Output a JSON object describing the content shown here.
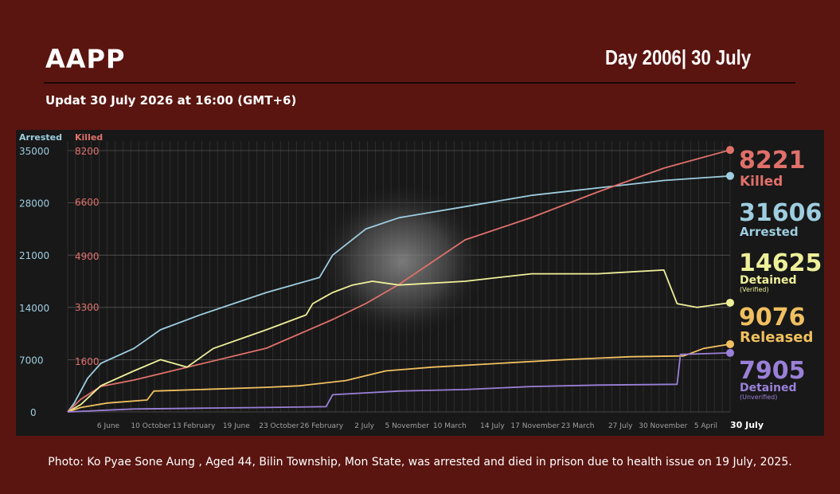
{
  "header": {
    "brand": "AAPP",
    "day_label": "Day 2006| 30 July",
    "update_text": "Updat 30 July 2026 at 16:00 (GMT+6)"
  },
  "caption": "Photo: Ko Pyae Sone Aung , Aged 44, Bilin Township, Mon State, was arrested and died in prison due to health issue on 19 July, 2025.",
  "colors": {
    "background": "#5a1510",
    "panel": "#181818",
    "arrested": "#9ecde0",
    "killed": "#e0706a",
    "verified": "#eef09a",
    "released": "#f0c060",
    "unverified": "#9a80d8"
  },
  "chart_data": {
    "type": "line",
    "grid": true,
    "axes": {
      "left_arrested": {
        "title": "Arrested",
        "ticks": [
          0,
          7000,
          14000,
          21000,
          28000,
          35000
        ],
        "tick_labels": [
          "0",
          "7000",
          "14000",
          "21000",
          "28000",
          "35000"
        ],
        "ylim": [
          0,
          35000
        ]
      },
      "left_killed": {
        "title": "Killed",
        "ticks": [
          1600,
          3300,
          4900,
          6600,
          8200
        ],
        "tick_labels": [
          "1600",
          "3300",
          "4900",
          "6600",
          "8200"
        ],
        "ylim": [
          0,
          8200
        ]
      }
    },
    "x_tick_labels": [
      "6 June",
      "10 October",
      "13 February",
      "19 June",
      "23 October",
      "26 February",
      "2 July",
      "5 November",
      "10 March",
      "14 July",
      "17 November",
      "23 March",
      "27 July",
      "30 November",
      "5 April",
      "30 July"
    ],
    "series": [
      {
        "name": "Arrested",
        "axis": "arrested",
        "key": "arrested",
        "value_label": "31606",
        "sub_label": "",
        "color": "#9ecde0",
        "x": [
          0,
          0.01,
          0.03,
          0.05,
          0.1,
          0.14,
          0.2,
          0.3,
          0.38,
          0.4,
          0.45,
          0.5,
          0.6,
          0.7,
          0.8,
          0.9,
          1
        ],
        "y": [
          0,
          1200,
          4500,
          6500,
          8500,
          11000,
          13000,
          16000,
          18000,
          21000,
          24500,
          26000,
          27500,
          29000,
          30000,
          31000,
          31606
        ]
      },
      {
        "name": "Killed",
        "axis": "killed",
        "key": "killed",
        "value_label": "8221",
        "sub_label": "",
        "color": "#e0706a",
        "x": [
          0,
          0.02,
          0.05,
          0.1,
          0.2,
          0.3,
          0.4,
          0.45,
          0.5,
          0.55,
          0.6,
          0.7,
          0.8,
          0.9,
          1
        ],
        "y": [
          0,
          400,
          800,
          1000,
          1500,
          2000,
          2900,
          3400,
          4000,
          4700,
          5400,
          6100,
          6900,
          7650,
          8221
        ]
      },
      {
        "name": "Detained",
        "axis": "arrested",
        "key": "verified",
        "value_label": "14625",
        "sub_label": "(Verified)",
        "color": "#eef09a",
        "x": [
          0,
          0.02,
          0.05,
          0.1,
          0.14,
          0.18,
          0.22,
          0.3,
          0.36,
          0.37,
          0.39,
          0.4,
          0.43,
          0.46,
          0.5,
          0.6,
          0.7,
          0.8,
          0.9,
          0.92,
          0.95,
          1
        ],
        "y": [
          0,
          1000,
          3500,
          5500,
          7000,
          6000,
          8500,
          11000,
          13000,
          14500,
          15500,
          16000,
          17000,
          17500,
          17000,
          17500,
          18500,
          18500,
          19000,
          14500,
          14000,
          14625
        ]
      },
      {
        "name": "Released",
        "axis": "arrested",
        "key": "released",
        "value_label": "9076",
        "sub_label": "",
        "color": "#f0c060",
        "x": [
          0,
          0.02,
          0.06,
          0.12,
          0.13,
          0.2,
          0.3,
          0.35,
          0.42,
          0.48,
          0.55,
          0.65,
          0.75,
          0.85,
          0.93,
          0.96,
          1
        ],
        "y": [
          0,
          600,
          1200,
          1600,
          2800,
          3000,
          3300,
          3500,
          4200,
          5500,
          6000,
          6500,
          7000,
          7400,
          7500,
          8500,
          9076
        ]
      },
      {
        "name": "Detained",
        "axis": "arrested",
        "key": "unverified",
        "value_label": "7905",
        "sub_label": "(Unverified)",
        "color": "#9a80d8",
        "x": [
          0,
          0.05,
          0.1,
          0.2,
          0.3,
          0.39,
          0.4,
          0.5,
          0.6,
          0.7,
          0.8,
          0.92,
          0.925,
          1
        ],
        "y": [
          0,
          200,
          400,
          500,
          600,
          700,
          2300,
          2800,
          3000,
          3400,
          3600,
          3700,
          7700,
          7905
        ]
      }
    ],
    "series_labels": {
      "killed": "Killed",
      "arrested": "Arrested",
      "verified": "Detained",
      "released": "Released",
      "unverified": "Detained"
    }
  }
}
